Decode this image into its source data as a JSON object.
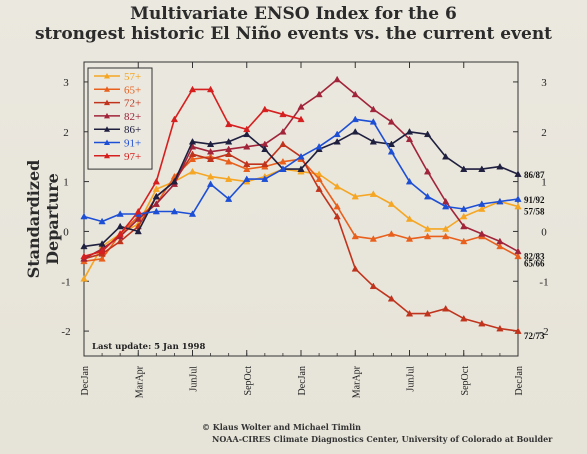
{
  "chart_data": {
    "type": "line",
    "title": "Multivariate ENSO Index for the 6",
    "subtitle": "strongest historic El Niño events vs. the current event",
    "ylabel": "Standardized Departure",
    "update_note": "Last update: 5 Jan 1998",
    "credit_line1": "© Klaus Wolter and Michael Timlin",
    "credit_line2": "NOAA-CIRES Climate Diagnostics Center, University of Colorado at Boulder",
    "ylim": [
      -2.5,
      3.4
    ],
    "yticks": [
      -2,
      -1,
      0,
      1,
      2,
      3
    ],
    "ytick_labels": [
      "-2",
      "-1",
      "0",
      "1",
      "2",
      "3"
    ],
    "xticks": [
      0,
      3,
      6,
      9,
      12,
      15,
      18,
      21,
      24
    ],
    "xtick_labels": [
      "DecJan",
      "MarApr",
      "JunJul",
      "SepOct",
      "DecJan",
      "MarApr",
      "JunJul",
      "SepOct",
      "DecJan"
    ],
    "x": [
      0,
      1,
      2,
      3,
      4,
      5,
      6,
      7,
      8,
      9,
      10,
      11,
      12,
      13,
      14,
      15,
      16,
      17,
      18,
      19,
      20,
      21,
      22,
      23,
      24
    ],
    "grid": false,
    "legend_position": "top-left",
    "series": [
      {
        "name": "57+",
        "end_label": "57/58",
        "color": "#f5a623",
        "values": [
          -0.95,
          -0.3,
          -0.05,
          0.15,
          0.85,
          1.0,
          1.2,
          1.1,
          1.05,
          1.0,
          1.1,
          1.25,
          1.2,
          1.15,
          0.9,
          0.7,
          0.75,
          0.55,
          0.25,
          0.05,
          0.05,
          0.3,
          0.45,
          0.6,
          0.5
        ]
      },
      {
        "name": "65+",
        "end_label": "65/66",
        "color": "#e8601c",
        "values": [
          -0.6,
          -0.55,
          -0.05,
          0.3,
          0.55,
          1.1,
          1.45,
          1.5,
          1.4,
          1.25,
          1.3,
          1.4,
          1.45,
          1.05,
          0.5,
          -0.1,
          -0.15,
          -0.05,
          -0.15,
          -0.1,
          -0.1,
          -0.2,
          -0.1,
          -0.3,
          -0.5
        ]
      },
      {
        "name": "72+",
        "end_label": "72/73",
        "color": "#c0341d",
        "values": [
          -0.55,
          -0.45,
          -0.2,
          0.1,
          0.7,
          1.0,
          1.55,
          1.45,
          1.55,
          1.35,
          1.35,
          1.75,
          1.5,
          0.85,
          0.3,
          -0.75,
          -1.1,
          -1.35,
          -1.65,
          -1.65,
          -1.55,
          -1.75,
          -1.85,
          -1.95,
          -2.0
        ]
      },
      {
        "name": "82+",
        "end_label": "82/83",
        "color": "#a1243a",
        "values": [
          -0.55,
          -0.35,
          -0.1,
          0.25,
          0.55,
          0.95,
          1.7,
          1.6,
          1.65,
          1.7,
          1.75,
          2.0,
          2.5,
          2.75,
          3.05,
          2.75,
          2.45,
          2.2,
          1.85,
          1.2,
          0.6,
          0.1,
          -0.05,
          -0.2,
          -0.4
        ]
      },
      {
        "name": "86+",
        "end_label": "86/87",
        "color": "#1f1f3f",
        "values": [
          -0.3,
          -0.25,
          0.1,
          0.0,
          0.7,
          1.0,
          1.8,
          1.75,
          1.8,
          1.95,
          1.65,
          1.25,
          1.25,
          1.65,
          1.8,
          2.0,
          1.8,
          1.75,
          2.0,
          1.95,
          1.5,
          1.25,
          1.25,
          1.3,
          1.15
        ]
      },
      {
        "name": "91+",
        "end_label": "91/92",
        "color": "#1d4fd6",
        "values": [
          0.3,
          0.2,
          0.35,
          0.35,
          0.4,
          0.4,
          0.35,
          0.95,
          0.65,
          1.05,
          1.05,
          1.25,
          1.5,
          1.7,
          1.95,
          2.25,
          2.2,
          1.6,
          1.0,
          0.7,
          0.5,
          0.45,
          0.55,
          0.6,
          0.65
        ]
      },
      {
        "name": "97+",
        "end_label": "",
        "color": "#d61f1f",
        "values": [
          -0.5,
          -0.4,
          -0.05,
          0.4,
          1.0,
          2.25,
          2.85,
          2.85,
          2.15,
          2.05,
          2.45,
          2.35,
          2.25,
          null,
          null,
          null,
          null,
          null,
          null,
          null,
          null,
          null,
          null,
          null,
          null
        ]
      }
    ]
  }
}
